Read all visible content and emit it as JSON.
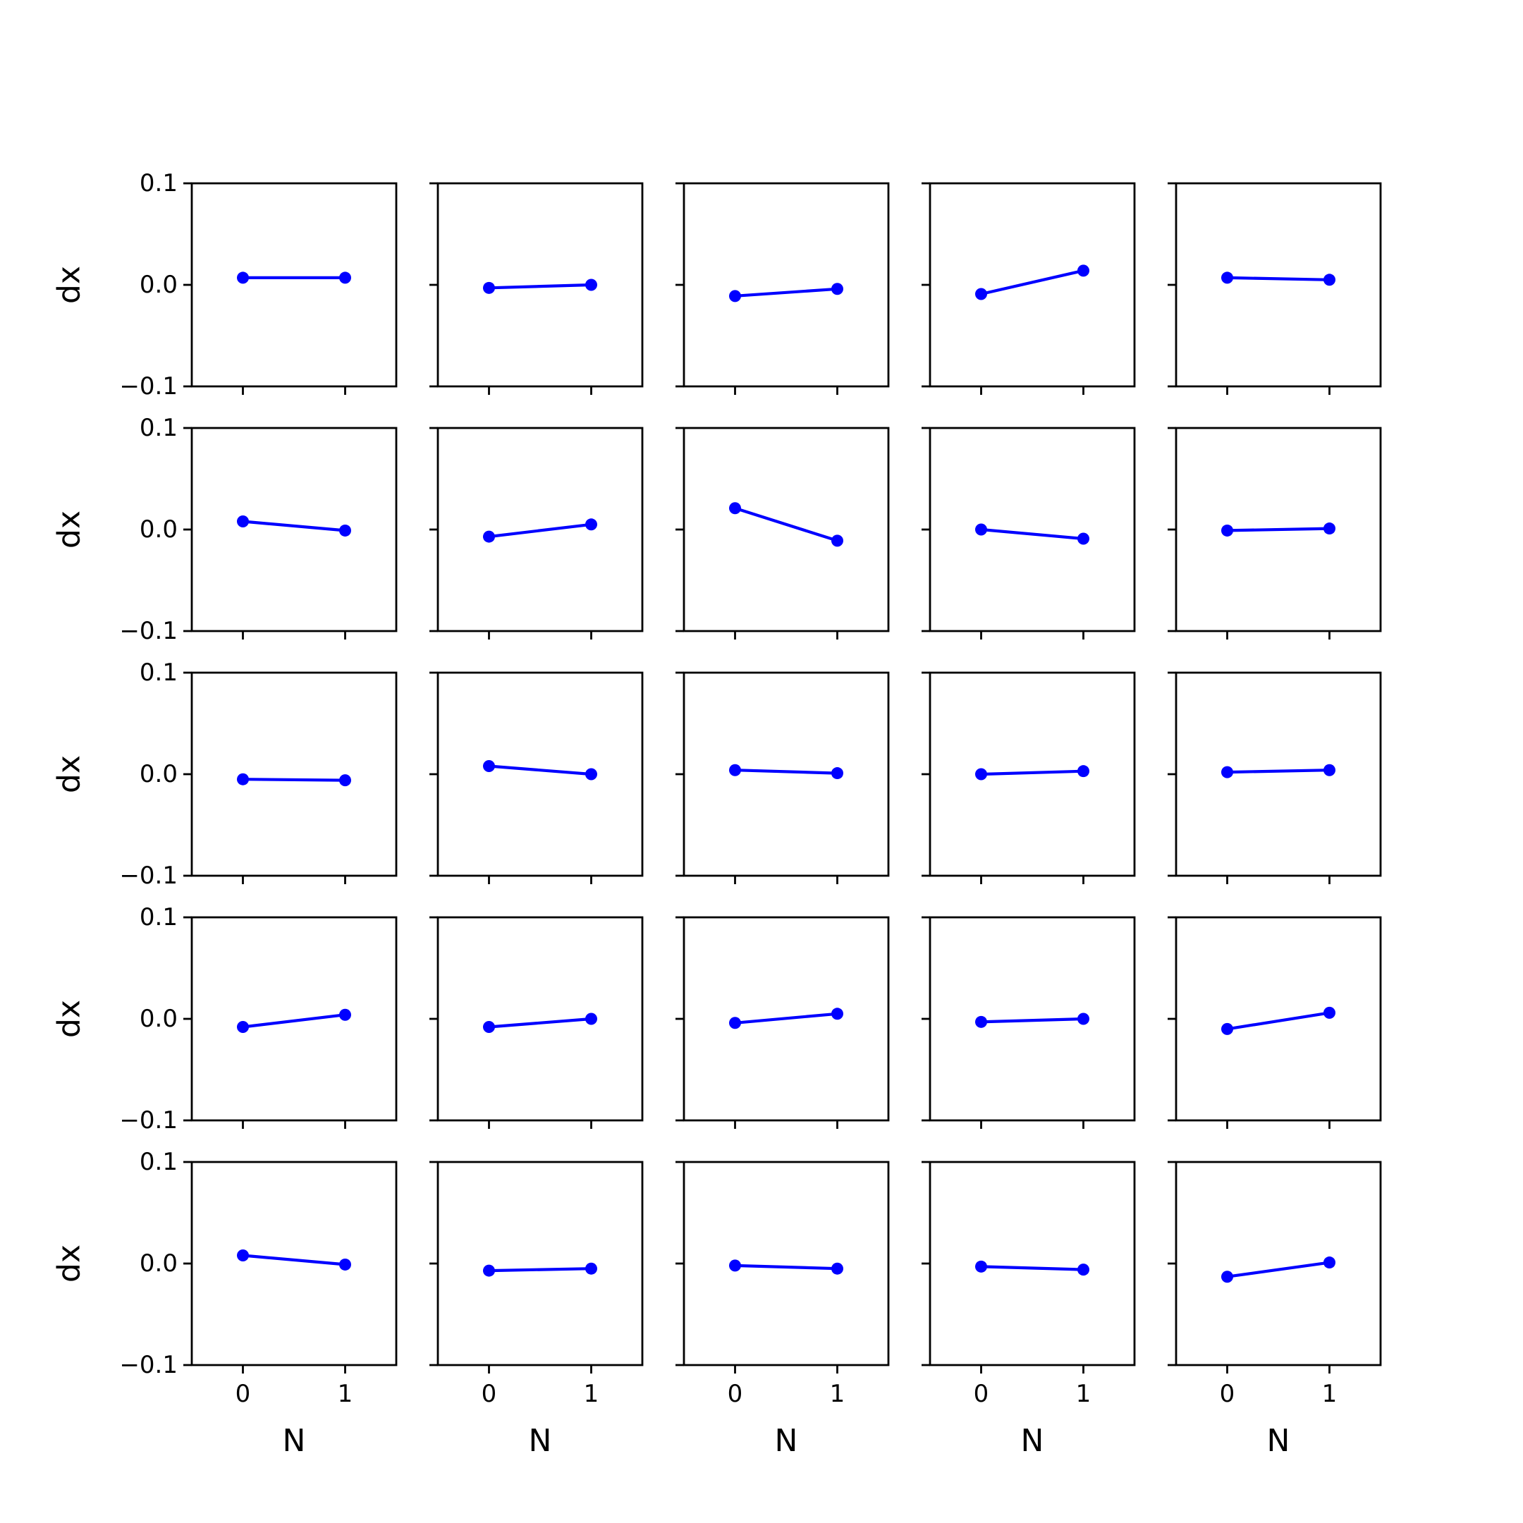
{
  "chart_data": {
    "type": "line",
    "layout": {
      "rows": 5,
      "cols": 5
    },
    "x": [
      0,
      1
    ],
    "xlim": [
      -0.5,
      1.5
    ],
    "ylim": [
      -0.1,
      0.1
    ],
    "xticks": [
      "0",
      "1"
    ],
    "yticks": [
      "−0.1",
      "0.0",
      "0.1"
    ],
    "xlabel": "N",
    "ylabel": "dx",
    "grid": false,
    "line_color": "#0000ff",
    "panels": [
      [
        0.007,
        0.007
      ],
      [
        -0.003,
        0.0
      ],
      [
        -0.011,
        -0.004
      ],
      [
        -0.009,
        0.014
      ],
      [
        0.007,
        0.005
      ],
      [
        0.008,
        -0.001
      ],
      [
        -0.007,
        0.005
      ],
      [
        0.021,
        -0.011
      ],
      [
        0.0,
        -0.009
      ],
      [
        -0.001,
        0.001
      ],
      [
        -0.005,
        -0.006
      ],
      [
        0.008,
        0.0
      ],
      [
        0.004,
        0.001
      ],
      [
        0.0,
        0.003
      ],
      [
        0.002,
        0.004
      ],
      [
        -0.008,
        0.004
      ],
      [
        -0.008,
        0.0
      ],
      [
        -0.004,
        0.005
      ],
      [
        -0.003,
        0.0
      ],
      [
        -0.01,
        0.006
      ],
      [
        0.008,
        -0.001
      ],
      [
        -0.007,
        -0.005
      ],
      [
        -0.002,
        -0.005
      ],
      [
        -0.003,
        -0.006
      ],
      [
        -0.013,
        0.001
      ]
    ]
  }
}
